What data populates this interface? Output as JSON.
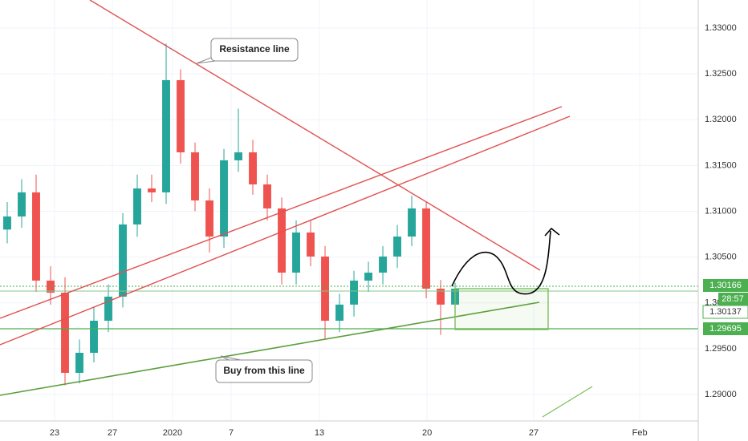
{
  "chart_data": {
    "type": "candlestick",
    "x": [
      0,
      1,
      2,
      3,
      4,
      5,
      6,
      7,
      8,
      9,
      10,
      11,
      12,
      13,
      14,
      15,
      16,
      17,
      18,
      19,
      20,
      21,
      22,
      23,
      24,
      25,
      26,
      27,
      28,
      29,
      30,
      31
    ],
    "open": [
      1.308,
      1.30943,
      1.31206,
      1.30243,
      1.30111,
      1.29236,
      1.29455,
      1.29805,
      1.30068,
      1.30856,
      1.31249,
      1.31206,
      1.32431,
      1.31643,
      1.31118,
      1.30724,
      1.31556,
      1.31643,
      1.31293,
      1.31031,
      1.3033,
      1.30768,
      1.30506,
      1.29805,
      1.29981,
      1.30243,
      1.3033,
      1.30506,
      1.30724,
      1.31031,
      1.30155,
      1.29981
    ],
    "high": [
      1.311,
      1.3135,
      1.314,
      1.304,
      1.3028,
      1.296,
      1.2995,
      1.302,
      1.3098,
      1.314,
      1.314,
      1.3283,
      1.3255,
      1.3175,
      1.3125,
      1.3168,
      1.3212,
      1.3178,
      1.314,
      1.3115,
      1.309,
      1.309,
      1.3062,
      1.301,
      1.3035,
      1.3045,
      1.3062,
      1.3085,
      1.3117,
      1.311,
      1.3025,
      1.3022
    ],
    "low": [
      1.3065,
      1.3082,
      1.3012,
      1.2998,
      1.291,
      1.2912,
      1.2935,
      1.2968,
      1.2995,
      1.3072,
      1.311,
      1.3108,
      1.3152,
      1.31,
      1.3055,
      1.306,
      1.3143,
      1.3118,
      1.309,
      1.302,
      1.302,
      1.304,
      1.296,
      1.2968,
      1.2985,
      1.3012,
      1.302,
      1.3038,
      1.3062,
      1.3005,
      1.2965,
      1.2988
    ],
    "close": [
      1.30943,
      1.31206,
      1.30243,
      1.30111,
      1.29236,
      1.29455,
      1.29805,
      1.30068,
      1.30856,
      1.31249,
      1.31206,
      1.32431,
      1.31643,
      1.31118,
      1.30724,
      1.31556,
      1.31643,
      1.31293,
      1.31031,
      1.3033,
      1.30768,
      1.30506,
      1.29805,
      1.29981,
      1.30243,
      1.3033,
      1.30506,
      1.30724,
      1.31031,
      1.30155,
      1.29981,
      1.30155
    ],
    "up_color": "#26a69a",
    "down_color": "#ef5350",
    "xlim": [
      -0.5,
      47.83
    ],
    "xticks": [
      {
        "value": 3.28,
        "label": "23"
      },
      {
        "value": 7.28,
        "label": "27"
      },
      {
        "value": 11.44,
        "label": "2020"
      },
      {
        "value": 15.5,
        "label": "7"
      },
      {
        "value": 21.61,
        "label": "13"
      },
      {
        "value": 29.06,
        "label": "20"
      },
      {
        "value": 36.44,
        "label": "27"
      },
      {
        "value": 43.78,
        "label": "Feb"
      }
    ],
    "ylim": [
      1.28711,
      1.33306
    ],
    "yticks": [
      {
        "value": 1.29,
        "label": "1.29000"
      },
      {
        "value": 1.295,
        "label": "1.29500"
      },
      {
        "value": 1.3,
        "label": "1.30000"
      },
      {
        "value": 1.305,
        "label": "1.30500"
      },
      {
        "value": 1.31,
        "label": "1.31000"
      },
      {
        "value": 1.315,
        "label": "1.31500"
      },
      {
        "value": 1.32,
        "label": "1.32000"
      },
      {
        "value": 1.325,
        "label": "1.32500"
      },
      {
        "value": 1.33,
        "label": "1.33000"
      }
    ],
    "grid": true,
    "annotations": [
      "Resistance line",
      "Buy from this line"
    ],
    "price_labels": [
      "1.30166",
      "28:57",
      "1.30137",
      "1.29695"
    ]
  }
}
